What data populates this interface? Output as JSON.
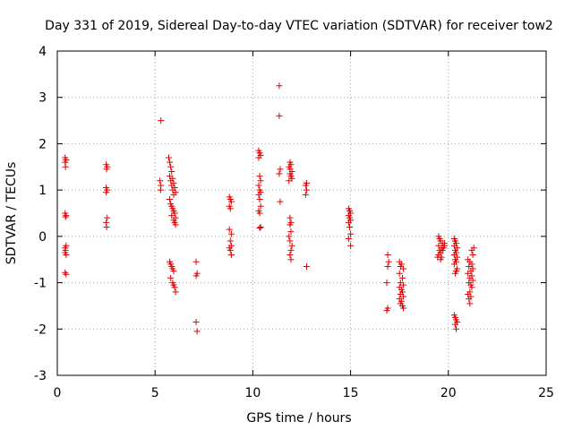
{
  "chart_data": {
    "type": "scatter",
    "title": "Day 331 of 2019, Sidereal Day-to-day VTEC variation (SDTVAR) for receiver tow2",
    "xlabel": "GPS time / hours",
    "ylabel": "SDTVAR / TECUs",
    "xlim": [
      0,
      25
    ],
    "ylim": [
      -3,
      4
    ],
    "xticks": [
      0,
      5,
      10,
      15,
      20,
      25
    ],
    "yticks": [
      -3,
      -2,
      -1,
      0,
      1,
      2,
      3,
      4
    ],
    "xtick_labels": [
      "0",
      "5",
      "10",
      "15",
      "20",
      "25"
    ],
    "ytick_labels": [
      "-3",
      "-2",
      "-1",
      "0",
      "1",
      "2",
      "3",
      "4"
    ],
    "grid": true,
    "marker": "plus",
    "color": "#e00000",
    "series": [
      {
        "name": "SDTVAR",
        "points": [
          [
            0.4,
            1.7
          ],
          [
            0.45,
            1.65
          ],
          [
            0.4,
            1.6
          ],
          [
            0.42,
            1.5
          ],
          [
            0.4,
            0.5
          ],
          [
            0.45,
            0.45
          ],
          [
            0.42,
            0.42
          ],
          [
            0.45,
            -0.2
          ],
          [
            0.4,
            -0.25
          ],
          [
            0.42,
            -0.3
          ],
          [
            0.4,
            -0.35
          ],
          [
            0.45,
            -0.4
          ],
          [
            0.4,
            -0.78
          ],
          [
            0.45,
            -0.82
          ],
          [
            2.5,
            1.55
          ],
          [
            2.55,
            1.5
          ],
          [
            2.52,
            1.45
          ],
          [
            2.5,
            1.05
          ],
          [
            2.55,
            1.0
          ],
          [
            2.5,
            0.95
          ],
          [
            2.55,
            0.4
          ],
          [
            2.5,
            0.3
          ],
          [
            2.52,
            0.2
          ],
          [
            5.3,
            2.5
          ],
          [
            5.25,
            1.2
          ],
          [
            5.3,
            1.1
          ],
          [
            5.28,
            1.0
          ],
          [
            5.7,
            1.7
          ],
          [
            5.75,
            1.6
          ],
          [
            5.8,
            1.5
          ],
          [
            5.85,
            1.4
          ],
          [
            5.75,
            1.3
          ],
          [
            5.9,
            1.25
          ],
          [
            5.8,
            1.2
          ],
          [
            5.95,
            1.15
          ],
          [
            5.85,
            1.1
          ],
          [
            6.0,
            1.05
          ],
          [
            5.9,
            1.0
          ],
          [
            6.05,
            0.95
          ],
          [
            5.95,
            0.9
          ],
          [
            5.75,
            0.8
          ],
          [
            5.8,
            0.7
          ],
          [
            5.85,
            0.65
          ],
          [
            5.9,
            0.6
          ],
          [
            5.95,
            0.55
          ],
          [
            6.0,
            0.5
          ],
          [
            5.85,
            0.45
          ],
          [
            6.05,
            0.4
          ],
          [
            5.95,
            0.35
          ],
          [
            6.0,
            0.3
          ],
          [
            6.05,
            0.25
          ],
          [
            5.75,
            -0.55
          ],
          [
            5.8,
            -0.6
          ],
          [
            5.85,
            -0.65
          ],
          [
            5.9,
            -0.7
          ],
          [
            5.95,
            -0.75
          ],
          [
            5.8,
            -0.9
          ],
          [
            5.9,
            -1.0
          ],
          [
            5.95,
            -1.05
          ],
          [
            6.0,
            -1.1
          ],
          [
            6.05,
            -1.2
          ],
          [
            7.1,
            -0.55
          ],
          [
            7.15,
            -0.8
          ],
          [
            7.1,
            -0.85
          ],
          [
            7.1,
            -1.85
          ],
          [
            7.15,
            -2.05
          ],
          [
            8.8,
            0.85
          ],
          [
            8.85,
            0.8
          ],
          [
            8.9,
            0.75
          ],
          [
            8.8,
            0.65
          ],
          [
            8.85,
            0.6
          ],
          [
            8.8,
            0.15
          ],
          [
            8.9,
            0.05
          ],
          [
            8.85,
            -0.1
          ],
          [
            8.9,
            -0.2
          ],
          [
            8.8,
            -0.25
          ],
          [
            8.85,
            -0.3
          ],
          [
            8.9,
            -0.4
          ],
          [
            10.3,
            1.85
          ],
          [
            10.35,
            1.8
          ],
          [
            10.4,
            1.75
          ],
          [
            10.3,
            1.7
          ],
          [
            10.35,
            1.3
          ],
          [
            10.4,
            1.2
          ],
          [
            10.3,
            1.1
          ],
          [
            10.35,
            1.0
          ],
          [
            10.4,
            0.95
          ],
          [
            10.3,
            0.9
          ],
          [
            10.35,
            0.8
          ],
          [
            10.4,
            0.65
          ],
          [
            10.3,
            0.55
          ],
          [
            10.35,
            0.5
          ],
          [
            10.4,
            0.2
          ],
          [
            10.35,
            0.18
          ],
          [
            11.35,
            3.25
          ],
          [
            11.35,
            2.6
          ],
          [
            11.4,
            1.45
          ],
          [
            11.35,
            1.35
          ],
          [
            11.4,
            0.75
          ],
          [
            11.9,
            1.6
          ],
          [
            11.95,
            1.55
          ],
          [
            11.85,
            1.5
          ],
          [
            11.9,
            1.45
          ],
          [
            12.0,
            1.4
          ],
          [
            11.9,
            1.35
          ],
          [
            11.95,
            1.3
          ],
          [
            12.0,
            1.25
          ],
          [
            11.85,
            1.2
          ],
          [
            11.9,
            0.4
          ],
          [
            11.95,
            0.3
          ],
          [
            11.9,
            0.25
          ],
          [
            11.95,
            0.1
          ],
          [
            11.85,
            0.0
          ],
          [
            11.9,
            -0.1
          ],
          [
            12.0,
            -0.2
          ],
          [
            11.95,
            -0.3
          ],
          [
            11.9,
            -0.4
          ],
          [
            11.95,
            -0.5
          ],
          [
            12.75,
            1.15
          ],
          [
            12.7,
            1.1
          ],
          [
            12.75,
            1.0
          ],
          [
            12.7,
            0.9
          ],
          [
            12.75,
            -0.65
          ],
          [
            14.9,
            0.6
          ],
          [
            14.95,
            0.55
          ],
          [
            15.0,
            0.5
          ],
          [
            14.9,
            0.45
          ],
          [
            14.95,
            0.4
          ],
          [
            15.0,
            0.35
          ],
          [
            14.9,
            0.3
          ],
          [
            14.95,
            0.2
          ],
          [
            15.0,
            0.05
          ],
          [
            14.9,
            -0.05
          ],
          [
            15.0,
            -0.2
          ],
          [
            16.9,
            -0.4
          ],
          [
            16.95,
            -0.55
          ],
          [
            16.9,
            -0.65
          ],
          [
            16.85,
            -1.0
          ],
          [
            16.9,
            -1.55
          ],
          [
            16.85,
            -1.6
          ],
          [
            17.5,
            -0.55
          ],
          [
            17.6,
            -0.6
          ],
          [
            17.55,
            -0.65
          ],
          [
            17.7,
            -0.7
          ],
          [
            17.5,
            -0.8
          ],
          [
            17.65,
            -0.9
          ],
          [
            17.55,
            -1.0
          ],
          [
            17.7,
            -1.05
          ],
          [
            17.5,
            -1.1
          ],
          [
            17.6,
            -1.15
          ],
          [
            17.65,
            -1.2
          ],
          [
            17.55,
            -1.25
          ],
          [
            17.7,
            -1.3
          ],
          [
            17.5,
            -1.35
          ],
          [
            17.6,
            -1.4
          ],
          [
            17.55,
            -1.45
          ],
          [
            17.65,
            -1.5
          ],
          [
            17.7,
            -1.55
          ],
          [
            19.5,
            0.0
          ],
          [
            19.55,
            -0.05
          ],
          [
            19.6,
            -0.1
          ],
          [
            19.7,
            -0.15
          ],
          [
            19.5,
            -0.2
          ],
          [
            19.65,
            -0.25
          ],
          [
            19.8,
            -0.2
          ],
          [
            19.55,
            -0.3
          ],
          [
            19.6,
            -0.35
          ],
          [
            19.7,
            -0.3
          ],
          [
            19.5,
            -0.4
          ],
          [
            19.65,
            -0.45
          ],
          [
            19.75,
            -0.25
          ],
          [
            19.6,
            -0.5
          ],
          [
            19.45,
            -0.45
          ],
          [
            19.8,
            -0.15
          ],
          [
            20.3,
            -0.05
          ],
          [
            20.35,
            -0.1
          ],
          [
            20.4,
            -0.15
          ],
          [
            20.3,
            -0.2
          ],
          [
            20.45,
            -0.25
          ],
          [
            20.35,
            -0.3
          ],
          [
            20.4,
            -0.35
          ],
          [
            20.3,
            -0.4
          ],
          [
            20.45,
            -0.45
          ],
          [
            20.35,
            -0.5
          ],
          [
            20.4,
            -0.55
          ],
          [
            20.3,
            -0.6
          ],
          [
            20.45,
            -0.7
          ],
          [
            20.4,
            -0.75
          ],
          [
            20.35,
            -0.8
          ],
          [
            20.3,
            -1.7
          ],
          [
            20.35,
            -1.75
          ],
          [
            20.4,
            -1.8
          ],
          [
            20.45,
            -1.85
          ],
          [
            20.35,
            -1.9
          ],
          [
            20.4,
            -2.0
          ],
          [
            21.0,
            -0.5
          ],
          [
            21.1,
            -0.55
          ],
          [
            21.2,
            -0.6
          ],
          [
            21.05,
            -0.65
          ],
          [
            21.25,
            -0.7
          ],
          [
            21.15,
            -0.75
          ],
          [
            21.0,
            -0.8
          ],
          [
            21.2,
            -0.85
          ],
          [
            21.1,
            -0.9
          ],
          [
            21.25,
            -0.95
          ],
          [
            21.05,
            -1.0
          ],
          [
            21.15,
            -1.05
          ],
          [
            21.2,
            -1.1
          ],
          [
            21.1,
            -1.2
          ],
          [
            21.0,
            -1.25
          ],
          [
            21.15,
            -1.3
          ],
          [
            21.05,
            -1.35
          ],
          [
            21.1,
            -1.45
          ],
          [
            21.3,
            -0.25
          ],
          [
            21.25,
            -0.4
          ],
          [
            21.2,
            -0.3
          ]
        ]
      }
    ]
  }
}
